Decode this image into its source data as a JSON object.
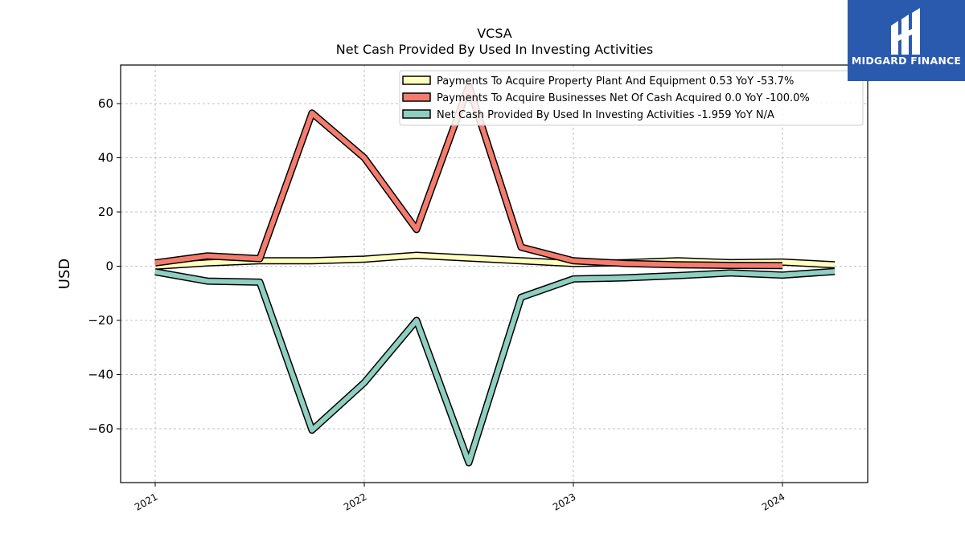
{
  "chart_data": {
    "type": "line",
    "title": "VCSA",
    "subtitle": "Net Cash Provided By Used In Investing Activities",
    "ylabel": "USD",
    "xlabel": "",
    "ylim": [
      -80,
      74
    ],
    "yticks": [
      60,
      40,
      20,
      0,
      -20,
      -40,
      -60
    ],
    "ytick_labels": [
      "60",
      "40",
      "20",
      "0",
      "−20",
      "−40",
      "−60"
    ],
    "xticks": [
      "2021",
      "2022",
      "2023",
      "2024"
    ],
    "x": [
      "2021-01",
      "2021-04",
      "2021-07",
      "2021-10",
      "2022-01",
      "2022-04",
      "2022-07",
      "2022-10",
      "2023-01",
      "2023-04",
      "2023-07",
      "2023-10",
      "2024-01",
      "2024-04"
    ],
    "grid": true,
    "legend_position": "top-right",
    "series": [
      {
        "name": "Payments To Acquire Property Plant And Equipment  0.53 YoY -53.7%",
        "color": "#ffffbf",
        "values": [
          0,
          1.2,
          2,
          2,
          2.6,
          4,
          3,
          2,
          1.0,
          1.3,
          2,
          1.3,
          1.5,
          0.53
        ]
      },
      {
        "name": "Payments To Acquire Businesses Net Of Cash Acquired  0.0 YoY -100.0%",
        "color": "#f47c6e",
        "values": [
          1.2,
          3.8,
          2.8,
          56.5,
          40,
          13.5,
          66.5,
          7,
          2,
          1,
          0.5,
          0.3,
          0.2,
          null
        ]
      },
      {
        "name": "Net Cash Provided By Used In Investing Activities  -1.959 YoY N/A",
        "color": "#8ecfc0",
        "values": [
          -2.1,
          -5.5,
          -5.9,
          -60.5,
          -43,
          -20,
          -72.5,
          -11.5,
          -4.7,
          -4.3,
          -3.5,
          -2.5,
          -3.3,
          -1.959
        ]
      }
    ]
  },
  "logo": {
    "text": "MIDGARD FINANCE",
    "icon": "midgard-logo-icon",
    "color": "#2a5aad"
  }
}
